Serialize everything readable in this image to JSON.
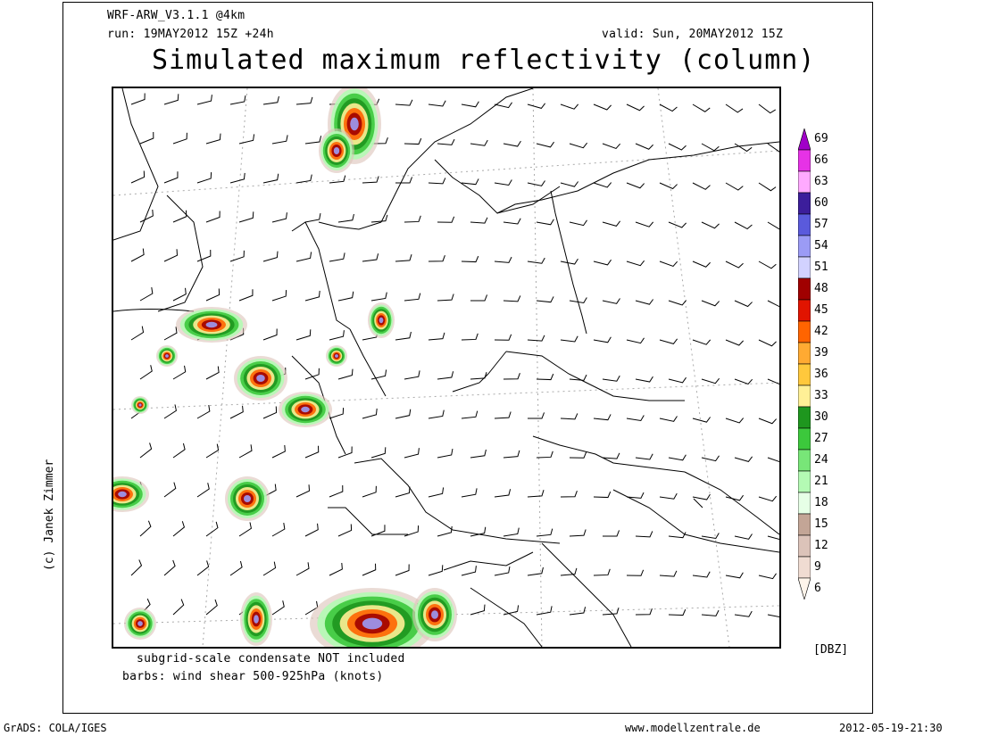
{
  "header": {
    "model": "WRF-ARW_V3.1.1 @4km",
    "run": "run: 19MAY2012 15Z +24h",
    "valid": "valid: Sun, 20MAY2012 15Z",
    "title": "Simulated maximum reflectivity (column)"
  },
  "notes": {
    "line1": "subgrid-scale condensate NOT included",
    "line2": "barbs: wind shear 500-925hPa (knots)"
  },
  "credit": "(c) Janek Zimmer",
  "footer": {
    "left": "GrADS: COLA/IGES",
    "center": "www.modellzentrale.de",
    "right": "2012-05-19-21:30"
  },
  "legend": {
    "unit": "[DBZ]",
    "levels": [
      {
        "value": "69",
        "color": "#a000c8"
      },
      {
        "value": "66",
        "color": "#e632e6"
      },
      {
        "value": "63",
        "color": "#ffaaff"
      },
      {
        "value": "60",
        "color": "#3c1e9b"
      },
      {
        "value": "57",
        "color": "#5a5adc"
      },
      {
        "value": "54",
        "color": "#9b9bf5"
      },
      {
        "value": "51",
        "color": "#d2d2ff"
      },
      {
        "value": "48",
        "color": "#a00000"
      },
      {
        "value": "45",
        "color": "#e11400"
      },
      {
        "value": "42",
        "color": "#ff6400"
      },
      {
        "value": "39",
        "color": "#ffaa32"
      },
      {
        "value": "36",
        "color": "#ffc83c"
      },
      {
        "value": "33",
        "color": "#fff096"
      },
      {
        "value": "30",
        "color": "#1e961e"
      },
      {
        "value": "27",
        "color": "#3cc83c"
      },
      {
        "value": "24",
        "color": "#78e678"
      },
      {
        "value": "21",
        "color": "#b4fab4"
      },
      {
        "value": "18",
        "color": "#e6ffe6"
      },
      {
        "value": "15",
        "color": "#c3a596"
      },
      {
        "value": "12",
        "color": "#dcc3b9"
      },
      {
        "value": "9",
        "color": "#f0dcd2"
      },
      {
        "value": "6",
        "color": "#fff5eb"
      }
    ]
  }
}
